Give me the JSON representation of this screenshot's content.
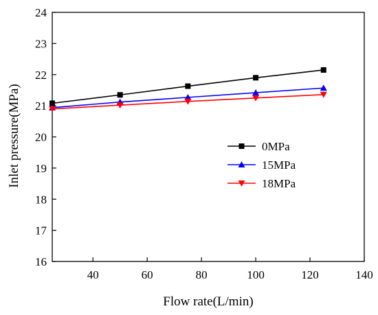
{
  "chart_data": {
    "type": "line",
    "title": "",
    "xlabel": "Flow rate(L/min)",
    "ylabel": "Inlet pressure(MPa)",
    "xlim": [
      25,
      140
    ],
    "ylim": [
      16,
      24
    ],
    "xticks": [
      40,
      60,
      80,
      100,
      120,
      140
    ],
    "yticks": [
      16,
      17,
      18,
      19,
      20,
      21,
      22,
      23,
      24
    ],
    "grid": false,
    "legend_position": "center-right",
    "x": [
      25,
      50,
      75,
      100,
      125
    ],
    "series": [
      {
        "name": "0MPa",
        "color": "#000000",
        "marker": "square",
        "values": [
          21.08,
          21.35,
          21.63,
          21.9,
          22.15
        ]
      },
      {
        "name": "15MPa",
        "color": "#0000ff",
        "marker": "triangle-up",
        "values": [
          20.94,
          21.12,
          21.27,
          21.42,
          21.57
        ]
      },
      {
        "name": "18MPa",
        "color": "#ff0000",
        "marker": "triangle-down",
        "values": [
          20.9,
          21.02,
          21.14,
          21.25,
          21.36
        ]
      }
    ]
  }
}
